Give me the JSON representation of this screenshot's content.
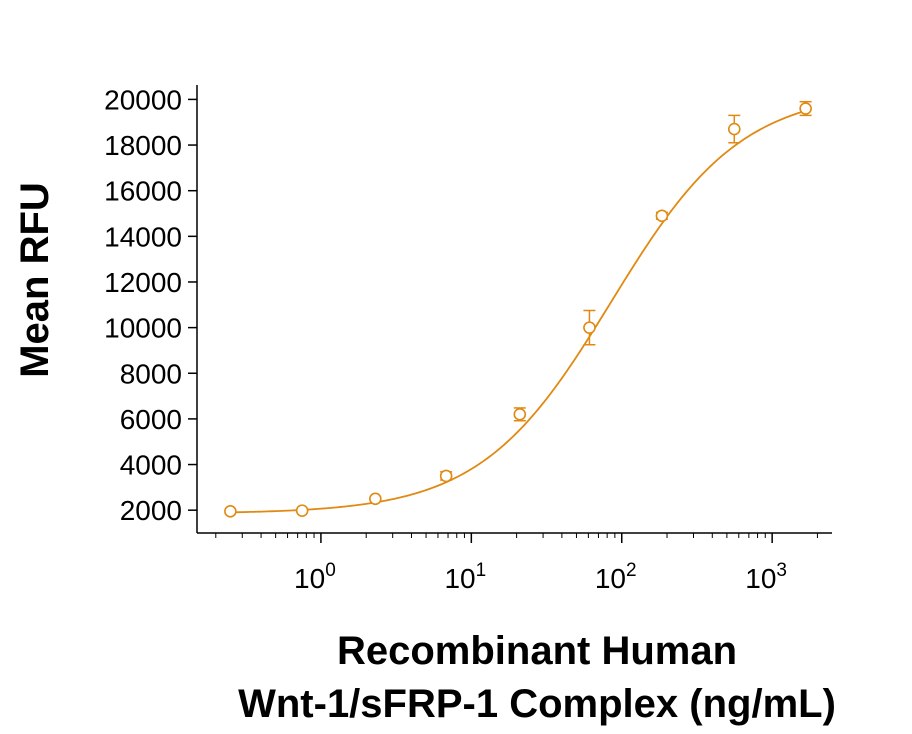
{
  "chart_data": {
    "type": "scatter",
    "title": "",
    "xlabel_lines": [
      "Recombinant Human",
      "Wnt-1/sFRP-1 Complex (ng/mL)"
    ],
    "ylabel": "Mean RFU",
    "x_scale": "log",
    "xlim": [
      0.15,
      2500
    ],
    "ylim": [
      1000,
      20500
    ],
    "x_ticks": [
      {
        "value": 1,
        "base": "10",
        "exp": "0"
      },
      {
        "value": 10,
        "base": "10",
        "exp": "1"
      },
      {
        "value": 100,
        "base": "10",
        "exp": "2"
      },
      {
        "value": 1000,
        "base": "10",
        "exp": "3"
      }
    ],
    "y_ticks": [
      "2000",
      "4000",
      "6000",
      "8000",
      "10000",
      "12000",
      "14000",
      "16000",
      "18000",
      "20000"
    ],
    "grid": false,
    "legend": "none",
    "color": "#E08A12",
    "series": [
      {
        "points": [
          {
            "x": 0.25,
            "y": 1950,
            "err": 0
          },
          {
            "x": 0.75,
            "y": 1980,
            "err": 0
          },
          {
            "x": 2.3,
            "y": 2500,
            "err": 0
          },
          {
            "x": 6.8,
            "y": 3500,
            "err": 180
          },
          {
            "x": 21,
            "y": 6200,
            "err": 280
          },
          {
            "x": 61,
            "y": 10000,
            "err": 750
          },
          {
            "x": 185,
            "y": 14900,
            "err": 150
          },
          {
            "x": 560,
            "y": 18700,
            "err": 600
          },
          {
            "x": 1670,
            "y": 19600,
            "err": 300
          }
        ],
        "fit": {
          "model": "4PL",
          "bottom": 1850,
          "top": 20400,
          "ec50": 85,
          "hill": 1.0
        }
      }
    ]
  }
}
